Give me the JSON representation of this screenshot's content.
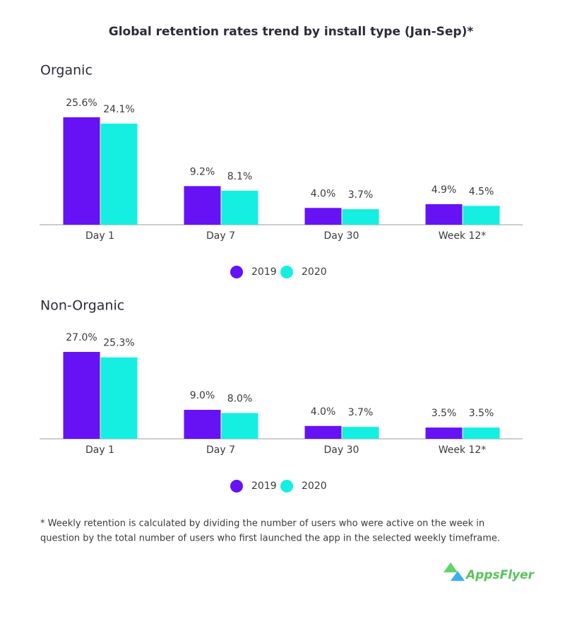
{
  "title": "Global retention rates trend by install type (Jan-Sep)*",
  "chart_data": [
    {
      "type": "bar",
      "title": "Organic",
      "categories": [
        "Day 1",
        "Day 7",
        "Day 30",
        "Week 12*"
      ],
      "series": [
        {
          "name": "2019",
          "color": "#6612f5",
          "values": [
            25.6,
            9.2,
            4.0,
            4.9
          ],
          "value_labels": [
            "25.6%",
            "9.2%",
            "4.0%",
            "4.9%"
          ]
        },
        {
          "name": "2020",
          "color": "#14efe2",
          "values": [
            24.1,
            8.1,
            3.7,
            4.5
          ],
          "value_labels": [
            "24.1%",
            "8.1%",
            "3.7%",
            "4.5%"
          ]
        }
      ]
    },
    {
      "type": "bar",
      "title": "Non-Organic",
      "categories": [
        "Day 1",
        "Day 7",
        "Day 30",
        "Week 12*"
      ],
      "series": [
        {
          "name": "2019",
          "color": "#6612f5",
          "values": [
            27.0,
            9.0,
            4.0,
            3.5
          ],
          "value_labels": [
            "27.0%",
            "9.0%",
            "4.0%",
            "3.5%"
          ]
        },
        {
          "name": "2020",
          "color": "#14efe2",
          "values": [
            25.3,
            8.0,
            3.7,
            3.5
          ],
          "value_labels": [
            "25.3%",
            "8.0%",
            "3.7%",
            "3.5%"
          ]
        }
      ]
    }
  ],
  "footnote": [
    "* Weekly retention is calculated by dividing the number of users who were active on the week in",
    "question by the total number of users who first launched the app in the selected weekly timeframe."
  ],
  "logo": "AppsFlyer"
}
